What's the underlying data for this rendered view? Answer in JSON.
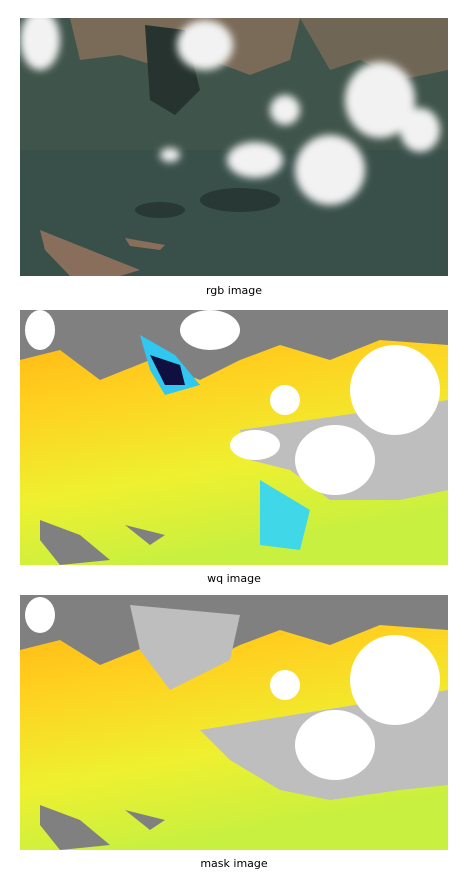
{
  "panels": [
    {
      "caption": "rgb image"
    },
    {
      "caption": "wq image"
    },
    {
      "caption": "mask image"
    }
  ]
}
